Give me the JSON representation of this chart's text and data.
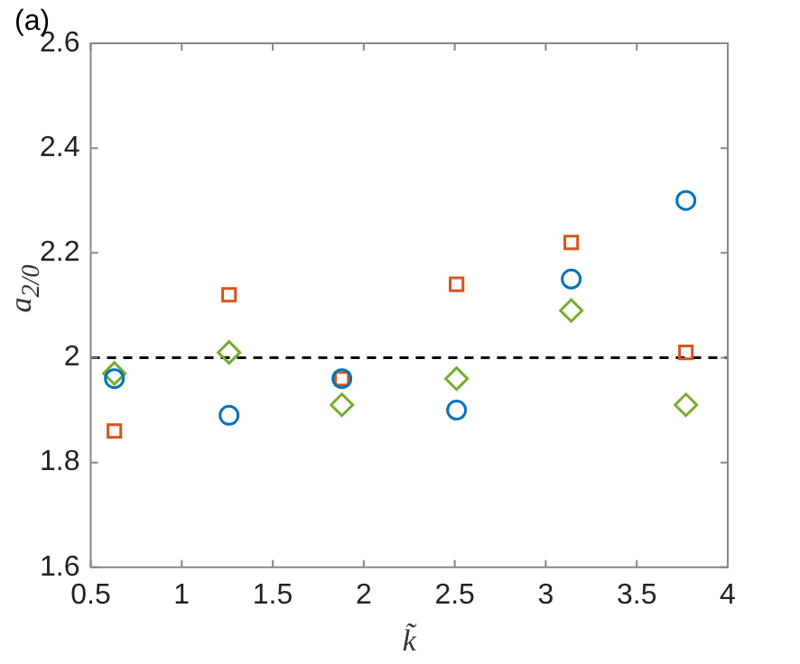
{
  "chart_data": {
    "type": "scatter",
    "xlabel": "k̃",
    "ylabel": "a$_{2/0}$",
    "annotations": [
      "(a)"
    ],
    "xlim": [
      0.5,
      4
    ],
    "xticks": [
      0.5,
      1,
      1.5,
      2,
      2.5,
      3,
      3.5,
      4
    ],
    "ylim": [
      1.6,
      2.6
    ],
    "yticks": [
      1.6,
      1.8,
      2,
      2.2,
      2.4,
      2.6
    ],
    "grid": false,
    "legend": false,
    "x": [
      0.63,
      1.26,
      1.88,
      2.51,
      3.14,
      3.77
    ],
    "series": [
      {
        "color": "#0072bd",
        "marker": "circle",
        "values": [
          1.96,
          1.89,
          1.96,
          1.9,
          2.15,
          2.3
        ]
      },
      {
        "color": "#d95319",
        "marker": "square",
        "values": [
          1.86,
          2.12,
          1.96,
          2.14,
          2.22,
          2.01
        ]
      },
      {
        "color": "#77ac30",
        "marker": "diamond",
        "values": [
          1.97,
          2.01,
          1.91,
          1.96,
          2.09,
          1.91
        ]
      }
    ],
    "ref_lines": [
      {
        "axis": "y",
        "value": 2,
        "color": "#000000",
        "line_style": "dashed"
      }
    ]
  }
}
